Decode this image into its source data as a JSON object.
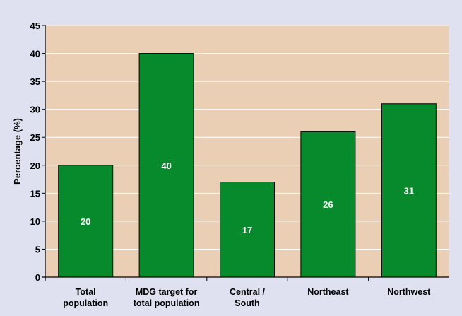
{
  "chart_data": {
    "type": "bar",
    "categories": [
      [
        "Total",
        "population"
      ],
      [
        "MDG target for",
        "total population"
      ],
      [
        "Central /",
        "South"
      ],
      [
        "Northeast"
      ],
      [
        "Northwest"
      ]
    ],
    "values": [
      20,
      40,
      17,
      26,
      31
    ],
    "data_labels": [
      "20",
      "40",
      "17",
      "26",
      "31"
    ],
    "title": "",
    "xlabel": "",
    "ylabel": "Percentage (%)",
    "ylim": [
      0,
      45
    ],
    "yticks": [
      0,
      5,
      10,
      15,
      20,
      25,
      30,
      35,
      40,
      45
    ],
    "grid": "horizontal",
    "legend": "none"
  },
  "colors": {
    "background": "#dfe1f0",
    "plot_area": "#ebcfb4",
    "bar": "#078a2b",
    "bar_label": "#ffffff",
    "gridline": "#ffffff"
  }
}
